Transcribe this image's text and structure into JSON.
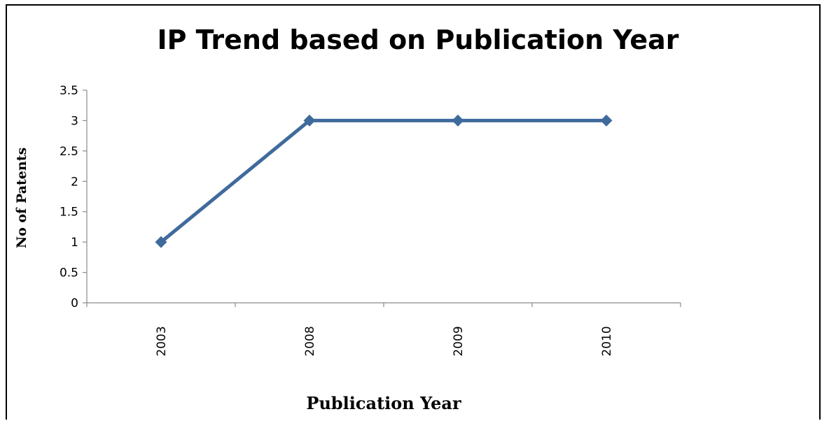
{
  "chart_data": {
    "type": "line",
    "title": "IP Trend based on Publication Year",
    "xlabel": "Publication Year",
    "ylabel": "No of Patents",
    "categories": [
      "2003",
      "2008",
      "2009",
      "2010"
    ],
    "series": [
      {
        "values": [
          1,
          3,
          3,
          3
        ]
      }
    ],
    "ylim": [
      0,
      3.5
    ],
    "yticks": [
      "0",
      "0.5",
      "1",
      "1.5",
      "2",
      "2.5",
      "3",
      "3.5"
    ],
    "grid": false,
    "legend": "none",
    "line_color": "#3f6a9c"
  }
}
